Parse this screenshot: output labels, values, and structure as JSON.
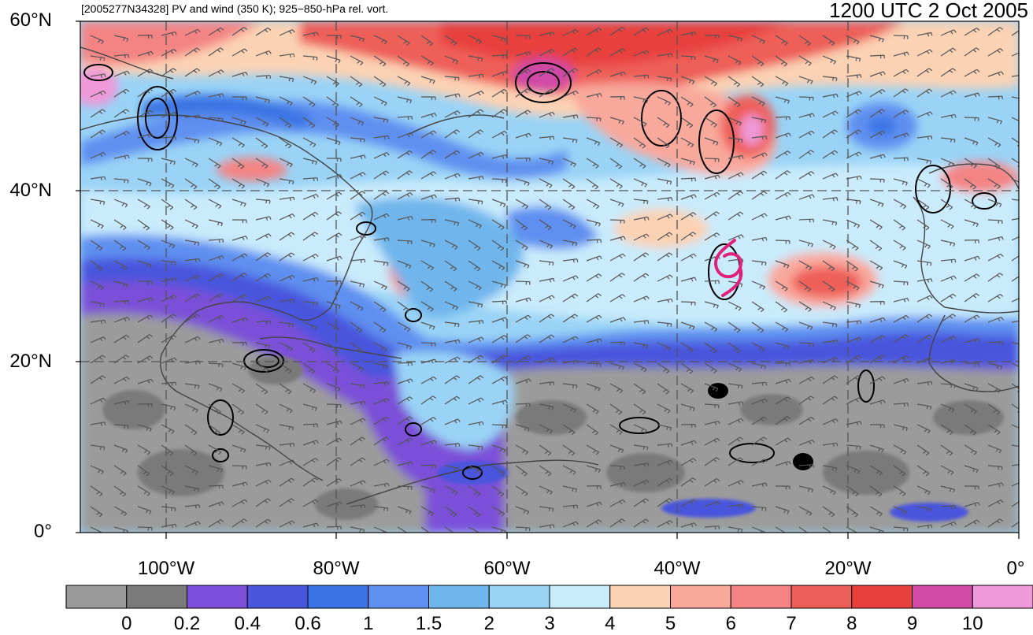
{
  "header": {
    "left_title": "[2005277N34328] PV and wind (350 K); 925−850-hPa rel. vort.",
    "right_title": "1200 UTC 2 Oct 2005"
  },
  "axes": {
    "lat_labels": [
      "60°N",
      "40°N",
      "20°N",
      "0°"
    ],
    "lon_labels": [
      "100°W",
      "80°W",
      "60°W",
      "40°W",
      "20°W",
      "0°"
    ]
  },
  "colorbar": {
    "colors": [
      "#9b9b9b",
      "#7a7a7a",
      "#7b4fd8",
      "#4a55dd",
      "#3a74e4",
      "#5f8ff0",
      "#6fb6ec",
      "#9ad3f6",
      "#c9ebfc",
      "#fbd2b4",
      "#f9a89c",
      "#f48484",
      "#ee5e58",
      "#e8403c",
      "#d04aa6",
      "#ee9ad8"
    ],
    "labels": [
      "0",
      "0.2",
      "0.4",
      "0.6",
      "1",
      "1.5",
      "2",
      "3",
      "4",
      "5",
      "6",
      "7",
      "8",
      "9",
      "10"
    ]
  },
  "storm_symbol": {
    "color": "#e0207a",
    "name": "tropical-cyclone-icon"
  }
}
